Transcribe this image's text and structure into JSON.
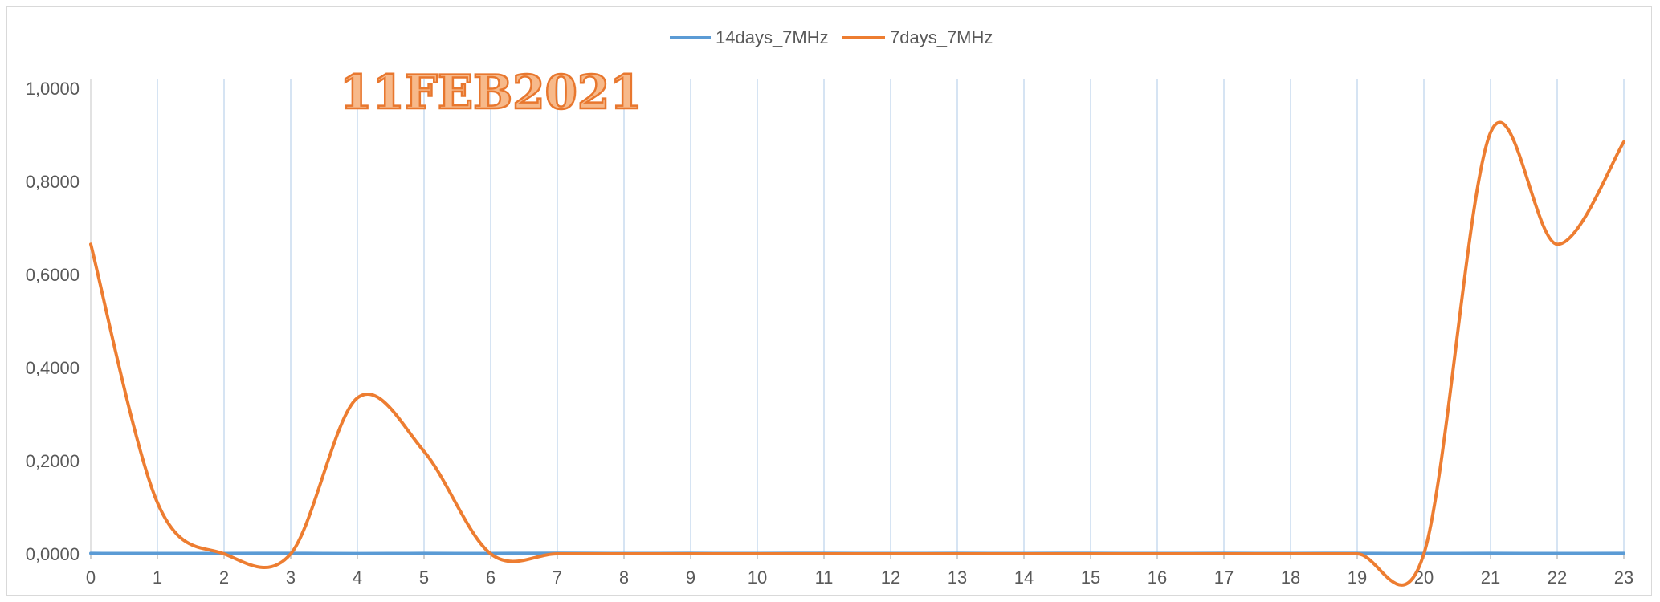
{
  "chart_data": {
    "type": "line",
    "title": "",
    "xlabel": "",
    "ylabel": "",
    "annotation": "11FEB2021",
    "x": [
      0,
      1,
      2,
      3,
      4,
      5,
      6,
      7,
      8,
      9,
      10,
      11,
      12,
      13,
      14,
      15,
      16,
      17,
      18,
      19,
      20,
      21,
      22,
      23
    ],
    "x_tick_labels": [
      "0",
      "1",
      "2",
      "3",
      "4",
      "5",
      "6",
      "7",
      "8",
      "9",
      "10",
      "11",
      "12",
      "13",
      "14",
      "15",
      "16",
      "17",
      "18",
      "19",
      "20",
      "21",
      "22",
      "23"
    ],
    "y_tick_labels": [
      "0,0000",
      "0,2000",
      "0,4000",
      "0,6000",
      "0,8000",
      "1,0000"
    ],
    "ylim": [
      0,
      1
    ],
    "grid": "vertical",
    "legend_position": "top",
    "series": [
      {
        "name": "14days_7MHz",
        "color": "#5b9bd5",
        "values": [
          0.001,
          0.0008,
          0.0009,
          0.0011,
          0.0007,
          0.001,
          0.0009,
          0.0012,
          0.0008,
          0.001,
          0.0009,
          0.0011,
          0.0008,
          0.001,
          0.0009,
          0.0011,
          0.0008,
          0.001,
          0.0009,
          0.0011,
          0.0008,
          0.001,
          0.0009,
          0.0011
        ]
      },
      {
        "name": "7days_7MHz",
        "color": "#ed7d31",
        "values": [
          0.665,
          0.11,
          0.0,
          0.0,
          0.335,
          0.22,
          0.0,
          0.0,
          0.0,
          0.0,
          0.0,
          0.0,
          0.0,
          0.0,
          0.0,
          0.0,
          0.0,
          0.0,
          0.0,
          0.0,
          0.0,
          0.905,
          0.665,
          0.885
        ]
      }
    ]
  }
}
